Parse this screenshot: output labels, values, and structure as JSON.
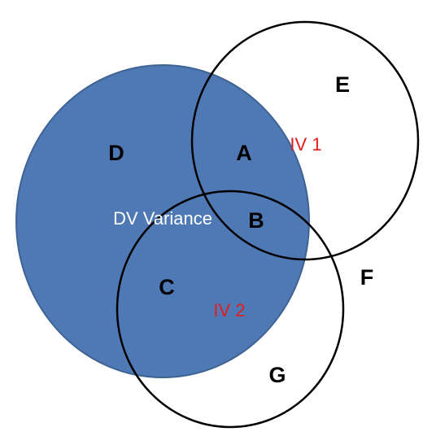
{
  "colors": {
    "dv_fill": "#4f79b5",
    "dv_stroke": "#3f6393",
    "iv_stroke": "#000000",
    "iv_text": "#e31c1c",
    "dv_text": "#ffffff"
  },
  "circles": {
    "dv": {
      "label": "DV Variance"
    },
    "iv1": {
      "label": "IV 1"
    },
    "iv2": {
      "label": "IV 2"
    }
  },
  "regions": {
    "a": "A",
    "b": "B",
    "c": "C",
    "d": "D",
    "e": "E",
    "f": "F",
    "g": "G"
  }
}
